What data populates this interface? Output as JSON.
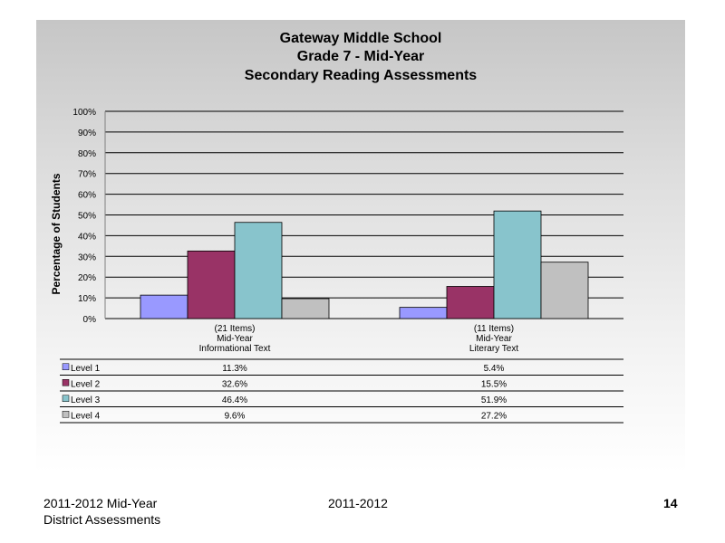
{
  "footer": {
    "left_line1": "2011-2012  Mid-Year",
    "left_line2": "District Assessments",
    "center": "2011-2012",
    "page_number": "14"
  },
  "chart_data": {
    "type": "bar",
    "title_lines": [
      "Gateway Middle School",
      "Grade 7 - Mid-Year",
      "Secondary Reading Assessments"
    ],
    "ylabel": "Percentage of Students",
    "xlabel": "",
    "ylim": [
      0,
      100
    ],
    "yticks": [
      "0%",
      "10%",
      "20%",
      "30%",
      "40%",
      "50%",
      "60%",
      "70%",
      "80%",
      "90%",
      "100%"
    ],
    "grid": true,
    "categories": [
      [
        "(21 Items)",
        "Mid-Year",
        "Informational Text"
      ],
      [
        "(11 Items)",
        "Mid-Year",
        "Literary Text"
      ]
    ],
    "series": [
      {
        "name": "Level 1",
        "values": [
          11.3,
          5.4
        ],
        "labels": [
          "11.3%",
          "5.4%"
        ],
        "color": "#9999ff"
      },
      {
        "name": "Level 2",
        "values": [
          32.6,
          15.5
        ],
        "labels": [
          "32.6%",
          "15.5%"
        ],
        "color": "#993366"
      },
      {
        "name": "Level 3",
        "values": [
          46.4,
          51.9
        ],
        "labels": [
          "46.4%",
          "51.9%"
        ],
        "color": "#88c4cc"
      },
      {
        "name": "Level 4",
        "values": [
          9.6,
          27.2
        ],
        "labels": [
          "9.6%",
          "27.2%"
        ],
        "color": "#c0c0c0"
      }
    ],
    "legend_placement": "data-table-below"
  }
}
